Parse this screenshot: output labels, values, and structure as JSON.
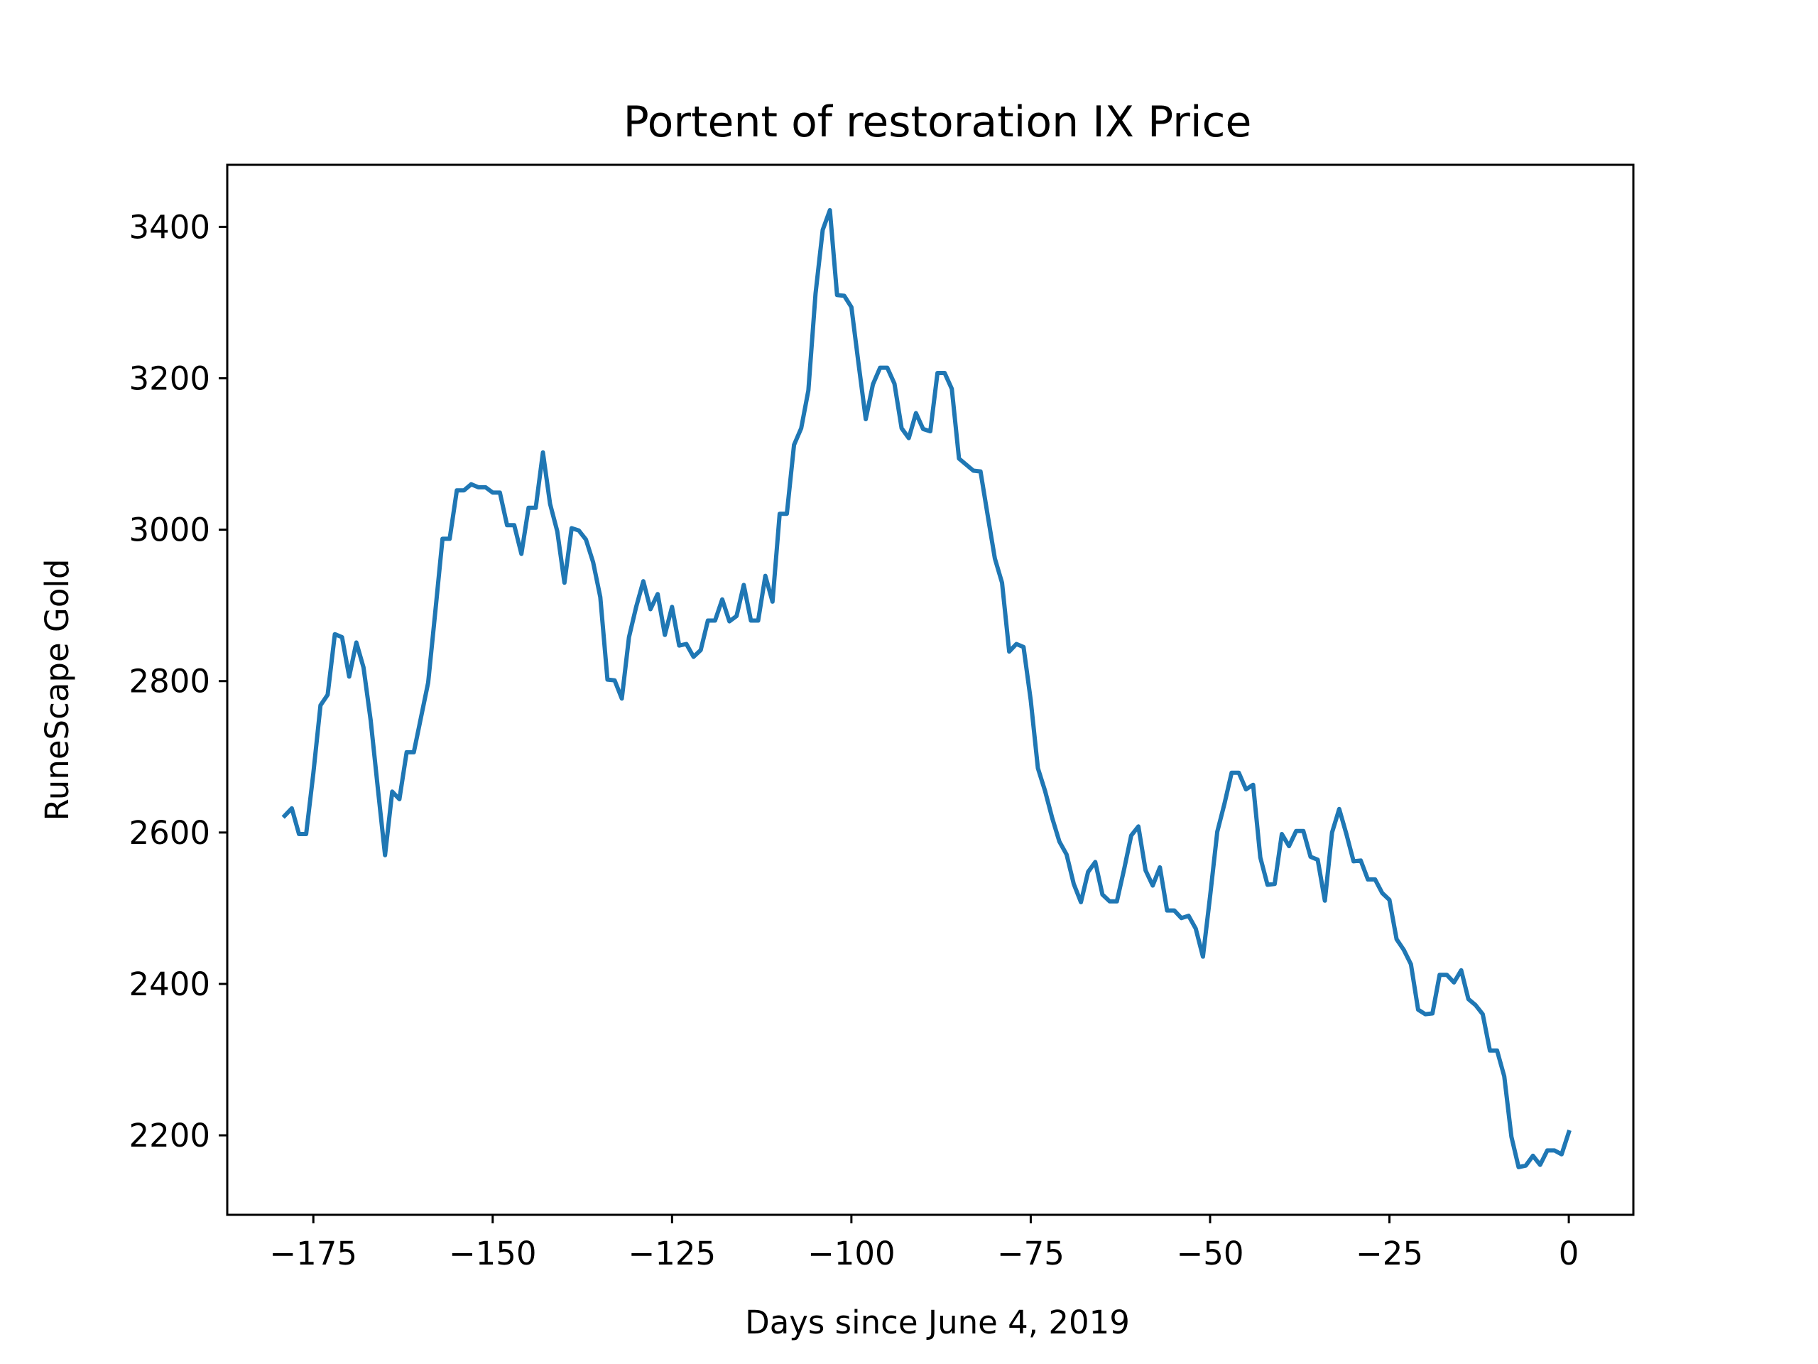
{
  "chart_data": {
    "type": "line",
    "title": "Portent of restoration IX Price",
    "xlabel": "Days since June 4, 2019",
    "ylabel": "RuneScape Gold",
    "xlim": [
      -187,
      9
    ],
    "ylim": [
      2095,
      3482
    ],
    "xticks": [
      -175,
      -150,
      -125,
      -100,
      -75,
      -50,
      -25,
      0
    ],
    "xtick_labels": [
      "−175",
      "−150",
      "−125",
      "−100",
      "−75",
      "−50",
      "−25",
      "0"
    ],
    "yticks": [
      2200,
      2400,
      2600,
      2800,
      3000,
      3200,
      3400
    ],
    "ytick_labels": [
      "2200",
      "2400",
      "2600",
      "2800",
      "3000",
      "3200",
      "3400"
    ],
    "grid": false,
    "color": "#1f77b4",
    "series": [
      {
        "x": [
          -179,
          -178,
          -177,
          -176,
          -175,
          -174,
          -173,
          -172,
          -171,
          -170,
          -169,
          -168,
          -167,
          -166,
          -165,
          -164,
          -163,
          -162,
          -161,
          -160,
          -159,
          -158,
          -157,
          -156,
          -155,
          -154,
          -153,
          -152,
          -151,
          -150,
          -149,
          -148,
          -147,
          -146,
          -145,
          -144,
          -143,
          -142,
          -141,
          -140,
          -139,
          -138,
          -137,
          -136,
          -135,
          -134,
          -133,
          -132,
          -131,
          -130,
          -129,
          -128,
          -127,
          -126,
          -125,
          -124,
          -123,
          -122,
          -121,
          -120,
          -119,
          -118,
          -117,
          -116,
          -115,
          -114,
          -113,
          -112,
          -111,
          -110,
          -109,
          -108,
          -107,
          -106,
          -105,
          -104,
          -103,
          -102,
          -101,
          -100,
          -99,
          -98,
          -97,
          -96,
          -95,
          -94,
          -93,
          -92,
          -91,
          -90,
          -89,
          -88,
          -87,
          -86,
          -85,
          -84,
          -83,
          -82,
          -81,
          -80,
          -79,
          -78,
          -77,
          -76,
          -75,
          -74,
          -73,
          -72,
          -71,
          -70,
          -69,
          -68,
          -67,
          -66,
          -65,
          -64,
          -63,
          -62,
          -61,
          -60,
          -59,
          -58,
          -57,
          -56,
          -55,
          -54,
          -53,
          -52,
          -51,
          -50,
          -49,
          -48,
          -47,
          -46,
          -45,
          -44,
          -43,
          -42,
          -41,
          -40,
          -39,
          -38,
          -37,
          -36,
          -35,
          -34,
          -33,
          -32,
          -31,
          -30,
          -29,
          -28,
          -27,
          -26,
          -25,
          -24,
          -23,
          -22,
          -21,
          -20,
          -19,
          -18,
          -17,
          -16,
          -15,
          -14,
          -13,
          -12,
          -11,
          -10,
          -9,
          -8,
          -7,
          -6,
          -5,
          -4,
          -3,
          -2,
          -1,
          0
        ],
        "y": [
          2622,
          2632,
          2598,
          2598,
          2678,
          2768,
          2782,
          2862,
          2858,
          2806,
          2851,
          2818,
          2748,
          2658,
          2570,
          2654,
          2644,
          2706,
          2706,
          2752,
          2798,
          2892,
          2988,
          2988,
          3052,
          3052,
          3060,
          3056,
          3056,
          3049,
          3049,
          3006,
          3006,
          2968,
          3029,
          3029,
          3102,
          3034,
          2998,
          2930,
          3002,
          2999,
          2987,
          2957,
          2911,
          2802,
          2801,
          2777,
          2858,
          2898,
          2932,
          2895,
          2915,
          2861,
          2898,
          2847,
          2849,
          2832,
          2841,
          2880,
          2880,
          2908,
          2879,
          2886,
          2927,
          2880,
          2880,
          2939,
          2905,
          3021,
          3021,
          3112,
          3134,
          3184,
          3312,
          3396,
          3422,
          3310,
          3309,
          3294,
          3219,
          3146,
          3192,
          3214,
          3214,
          3193,
          3134,
          3121,
          3154,
          3133,
          3130,
          3207,
          3207,
          3186,
          3094,
          3086,
          3078,
          3077,
          3019,
          2962,
          2930,
          2839,
          2849,
          2845,
          2775,
          2685,
          2655,
          2619,
          2588,
          2571,
          2532,
          2508,
          2548,
          2561,
          2518,
          2509,
          2509,
          2551,
          2596,
          2608,
          2550,
          2530,
          2554,
          2497,
          2497,
          2487,
          2490,
          2473,
          2436,
          2516,
          2601,
          2638,
          2679,
          2679,
          2657,
          2663,
          2567,
          2531,
          2532,
          2598,
          2582,
          2602,
          2602,
          2568,
          2564,
          2510,
          2600,
          2631,
          2598,
          2562,
          2563,
          2538,
          2538,
          2520,
          2511,
          2459,
          2445,
          2426,
          2366,
          2360,
          2361,
          2412,
          2412,
          2402,
          2418,
          2380,
          2372,
          2360,
          2312,
          2312,
          2278,
          2198,
          2158,
          2160,
          2173,
          2161,
          2180,
          2180,
          2175,
          2204
        ]
      }
    ]
  }
}
